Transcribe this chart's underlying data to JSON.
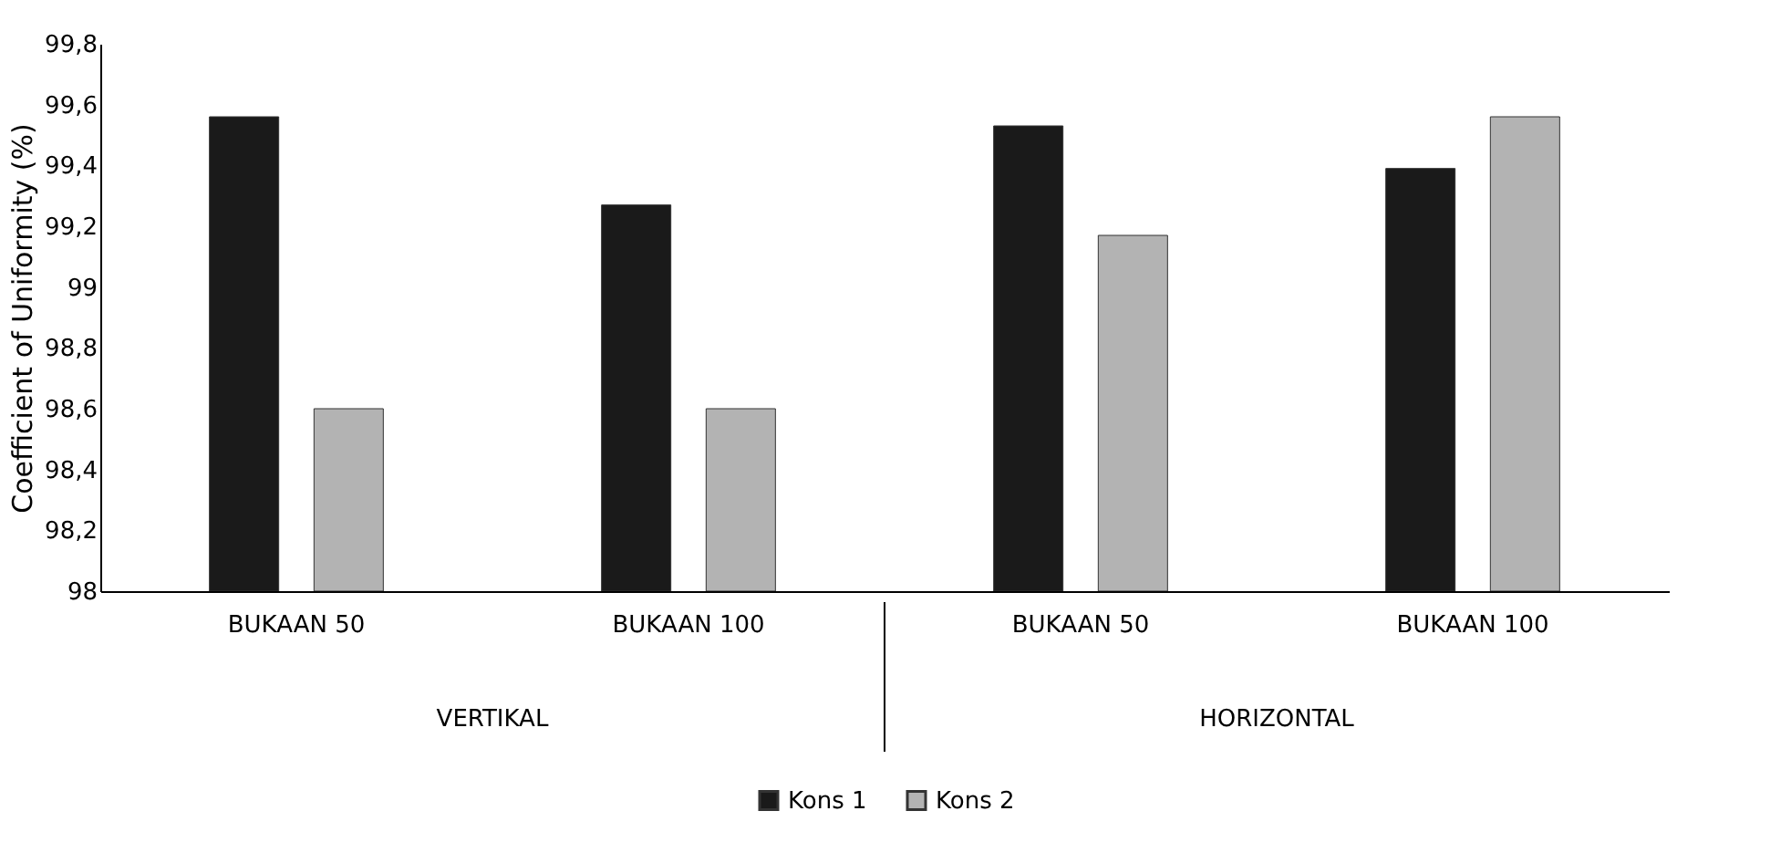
{
  "chart_data": {
    "type": "bar",
    "ylabel": "Coefficient of Uniformity (%)",
    "categories": [
      "BUKAAN 50",
      "BUKAAN 100",
      "BUKAAN 50",
      "BUKAAN 100"
    ],
    "series": [
      {
        "name": "Kons 1",
        "color": "#1a1a1a",
        "values": [
          99.56,
          99.27,
          99.53,
          99.39
        ]
      },
      {
        "name": "Kons 2",
        "color": "#b3b3b3",
        "values": [
          98.6,
          98.6,
          99.17,
          99.56
        ]
      }
    ],
    "annotations": [
      "VERTIKAL",
      "HORIZONTAL"
    ],
    "ylim": [
      98,
      99.8
    ],
    "yticks": [
      {
        "value": 98,
        "label": "98"
      },
      {
        "value": 98.2,
        "label": "98,2"
      },
      {
        "value": 98.4,
        "label": "98,4"
      },
      {
        "value": 98.6,
        "label": "98,6"
      },
      {
        "value": 98.8,
        "label": "98,8"
      },
      {
        "value": 99,
        "label": "99"
      },
      {
        "value": 99.2,
        "label": "99,2"
      },
      {
        "value": 99.4,
        "label": "99,4"
      },
      {
        "value": 99.6,
        "label": "99,6"
      },
      {
        "value": 99.8,
        "label": "99,8"
      }
    ],
    "grid": false,
    "legend": "bottom"
  }
}
